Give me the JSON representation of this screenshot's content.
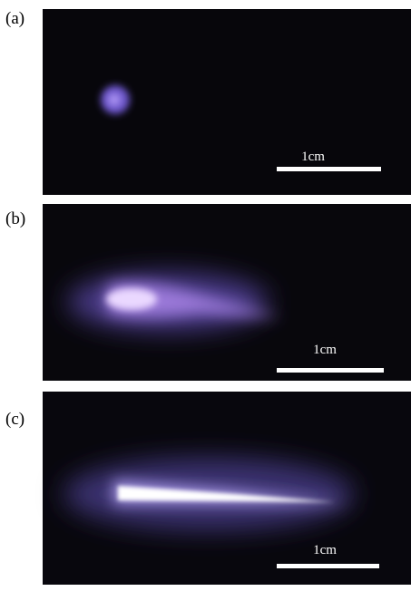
{
  "panels": [
    {
      "label": "(a)",
      "scale_bar": "1cm"
    },
    {
      "label": "(b)",
      "scale_bar": "1cm"
    },
    {
      "label": "(c)",
      "scale_bar": "1cm"
    }
  ]
}
